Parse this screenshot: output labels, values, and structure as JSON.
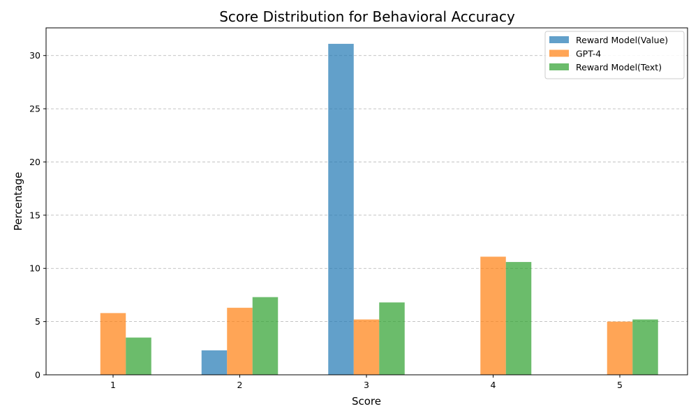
{
  "chart_data": {
    "type": "bar",
    "title": "Score Distribution for Behavioral Accuracy",
    "xlabel": "Score",
    "ylabel": "Percentage",
    "categories": [
      "1",
      "2",
      "3",
      "4",
      "5"
    ],
    "ylim": [
      0,
      32.6
    ],
    "yticks": [
      "0",
      "5",
      "10",
      "15",
      "20",
      "25",
      "30"
    ],
    "grid": "y-dashed",
    "legend_position": "top-right",
    "series": [
      {
        "name": "Reward Model(Value)",
        "color": "#1f77b4",
        "values": [
          0,
          2.3,
          31.1,
          0,
          0
        ]
      },
      {
        "name": "GPT-4",
        "color": "#ff7f0e",
        "values": [
          5.8,
          6.3,
          5.2,
          11.1,
          5.0
        ]
      },
      {
        "name": "Reward Model(Text)",
        "color": "#2ca02c",
        "values": [
          3.5,
          7.3,
          6.8,
          10.6,
          5.2
        ]
      }
    ]
  }
}
